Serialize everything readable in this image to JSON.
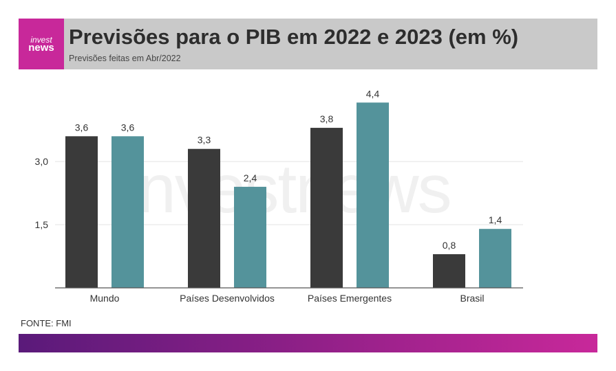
{
  "header": {
    "logo_line1": "invest",
    "logo_line2": "news",
    "title": "Previsões para o PIB em 2022 e 2023 (em %)",
    "subtitle": "Previsões feitas em Abr/2022"
  },
  "watermark": "investnews",
  "source": "FONTE: FMI",
  "colors": {
    "accent": "#c8289a",
    "series_2022": "#3a3a3a",
    "series_2023": "#54939b"
  },
  "chart_data": {
    "type": "bar",
    "categories": [
      "Mundo",
      "Países Desenvolvidos",
      "Países Emergentes",
      "Brasil"
    ],
    "series": [
      {
        "values": [
          3.6,
          3.3,
          3.8,
          0.8
        ],
        "labels": [
          "3,6",
          "3,3",
          "3,8",
          "0,8"
        ]
      },
      {
        "values": [
          3.6,
          2.4,
          4.4,
          1.4
        ],
        "labels": [
          "3,6",
          "2,4",
          "4,4",
          "1,4"
        ]
      }
    ],
    "yticks": [
      1.5,
      3.0
    ],
    "ytick_labels": [
      "1,5",
      "3,0"
    ],
    "ylim": [
      0,
      4.6
    ],
    "grid": true
  }
}
